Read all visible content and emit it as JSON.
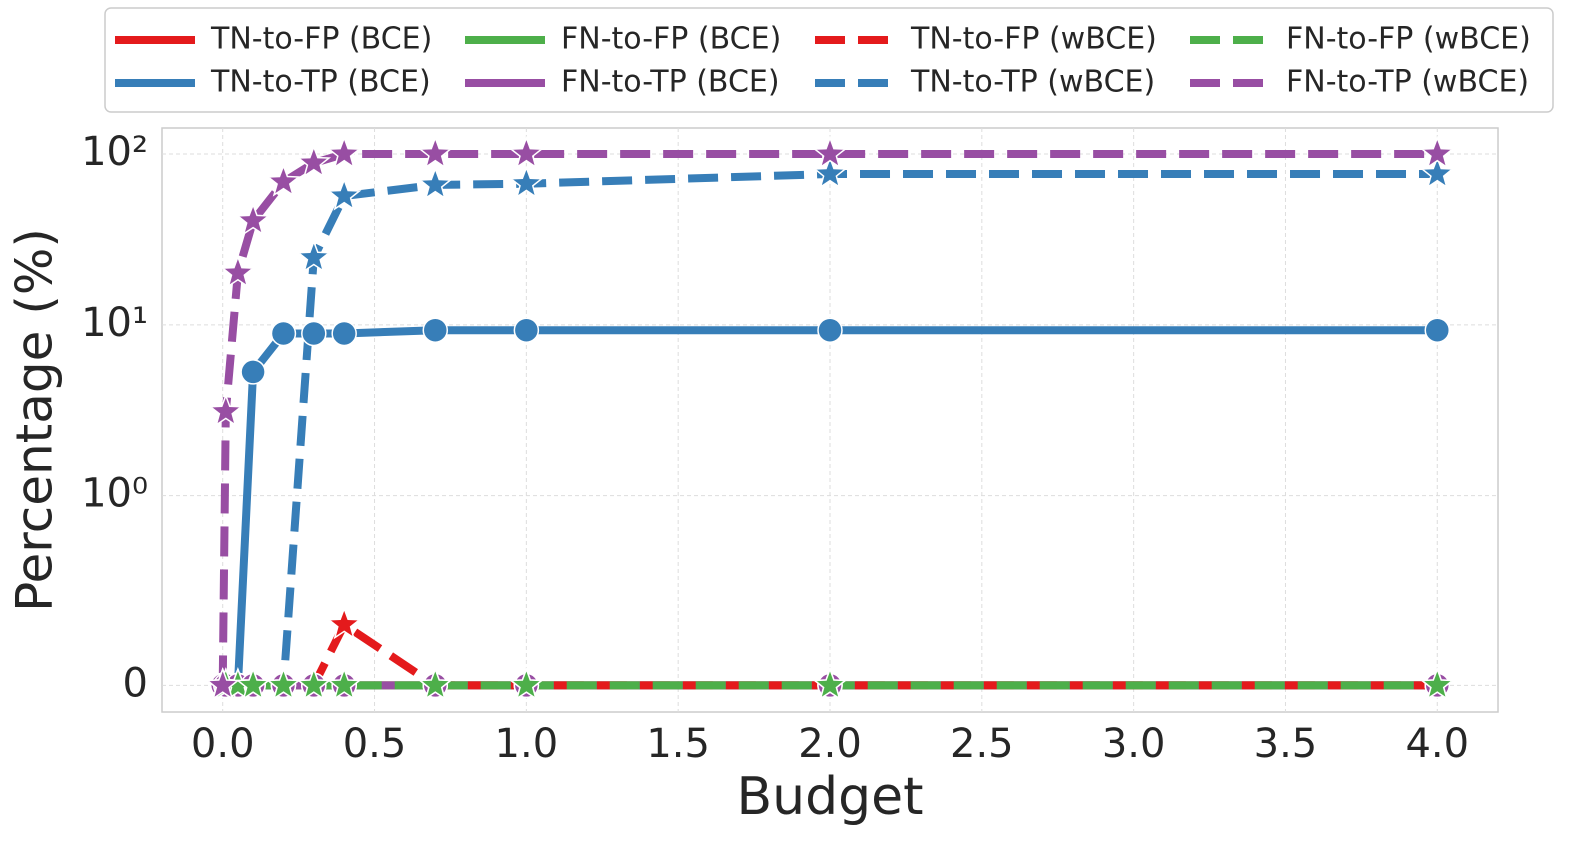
{
  "chart_data": {
    "type": "line",
    "xlabel": "Budget",
    "ylabel": "Percentage (%)",
    "x": [
      0,
      0.01,
      0.05,
      0.1,
      0.2,
      0.3,
      0.4,
      0.7,
      1.0,
      2.0,
      4.0
    ],
    "xlim": [
      -0.2,
      4.2
    ],
    "xticks": [
      {
        "value": 0,
        "label": "0.0"
      },
      0.5,
      {
        "value": 1,
        "label": "1.0"
      },
      1.5,
      {
        "value": 2,
        "label": "2.0"
      },
      2.5,
      {
        "value": 3,
        "label": "3.0"
      },
      3.5,
      {
        "value": 4,
        "label": "4.0"
      }
    ],
    "yscale": "symlog",
    "linthresh": 1,
    "ylim": [
      -0.14,
      142
    ],
    "yticks": [
      0,
      {
        "value": 1,
        "label": "10⁰"
      },
      {
        "value": 10,
        "label": "10¹"
      },
      {
        "value": 100,
        "label": "10²"
      }
    ],
    "grid": true,
    "legend": "top",
    "series": [
      {
        "name": "TN-to-FP (BCE)",
        "color": "#e41a1c",
        "dash": false,
        "marker": "circle",
        "values": [
          0,
          0,
          0,
          0,
          0,
          0,
          0,
          0,
          0,
          0,
          0
        ]
      },
      {
        "name": "TN-to-TP (BCE)",
        "color": "#377eb8",
        "dash": false,
        "marker": "circle",
        "values": [
          0,
          0,
          0,
          5.3,
          8.9,
          8.9,
          8.9,
          9.3,
          9.3,
          9.3,
          9.3
        ]
      },
      {
        "name": "FN-to-FP (BCE)",
        "color": "#4daf4a",
        "dash": false,
        "marker": "circle",
        "values": [
          0,
          0,
          0,
          0,
          0,
          0,
          0,
          0,
          0,
          0,
          0
        ]
      },
      {
        "name": "FN-to-TP (BCE)",
        "color": "#984ea3",
        "dash": false,
        "marker": "circle",
        "values": [
          0,
          0,
          0,
          0,
          0,
          0,
          0,
          0,
          0,
          0,
          0
        ]
      },
      {
        "name": "TN-to-FP (wBCE)",
        "color": "#e41a1c",
        "dash": true,
        "marker": "star",
        "values": [
          0,
          0,
          0,
          0,
          0,
          0,
          0.32,
          0,
          0,
          0,
          0
        ]
      },
      {
        "name": "TN-to-TP (wBCE)",
        "color": "#377eb8",
        "dash": true,
        "marker": "star",
        "values": [
          0,
          0,
          0,
          0,
          0,
          24.7,
          56.8,
          65.9,
          67,
          76.4,
          76.4
        ]
      },
      {
        "name": "FN-to-FP (wBCE)",
        "color": "#4daf4a",
        "dash": true,
        "marker": "star",
        "values": [
          0,
          0,
          0,
          0,
          0,
          0,
          0,
          0,
          0,
          0,
          0
        ]
      },
      {
        "name": "FN-to-TP (wBCE)",
        "color": "#984ea3",
        "dash": true,
        "marker": "star",
        "values": [
          0,
          3.1,
          20.1,
          40.6,
          68.6,
          88.6,
          100,
          100,
          100,
          100,
          100
        ]
      }
    ]
  }
}
